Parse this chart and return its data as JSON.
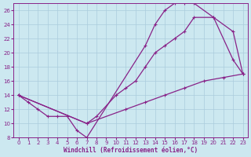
{
  "xlabel": "Windchill (Refroidissement éolien,°C)",
  "bg_color": "#cce8f0",
  "grid_color": "#aaccdd",
  "line_color": "#882288",
  "xlim": [
    -0.5,
    23.5
  ],
  "ylim": [
    8,
    27
  ],
  "xticks": [
    0,
    1,
    2,
    3,
    4,
    5,
    6,
    7,
    8,
    9,
    10,
    11,
    12,
    13,
    14,
    15,
    16,
    17,
    18,
    19,
    20,
    21,
    22,
    23
  ],
  "yticks": [
    8,
    10,
    12,
    14,
    16,
    18,
    20,
    22,
    24,
    26
  ],
  "curve1_x": [
    0,
    1,
    2,
    3,
    4,
    5,
    6,
    7,
    13,
    14,
    15,
    16,
    17,
    18,
    20,
    22,
    23
  ],
  "curve1_y": [
    14,
    13,
    12,
    11,
    11,
    11,
    9,
    8,
    21,
    24,
    26,
    27,
    27,
    27,
    25,
    19,
    17
  ],
  "curve2_x": [
    0,
    7,
    8,
    10,
    11,
    12,
    13,
    14,
    15,
    16,
    17,
    18,
    20,
    22,
    23
  ],
  "curve2_y": [
    14,
    10,
    11,
    14,
    15,
    16,
    18,
    20,
    21,
    22,
    23,
    25,
    25,
    23,
    17
  ],
  "curve3_x": [
    0,
    7,
    11,
    13,
    15,
    17,
    19,
    21,
    23
  ],
  "curve3_y": [
    14,
    10,
    12,
    13,
    14,
    15,
    16,
    16.5,
    17
  ]
}
